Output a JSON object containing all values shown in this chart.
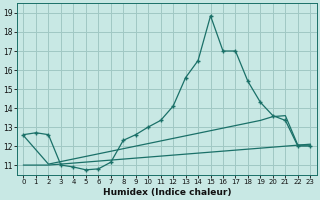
{
  "xlabel": "Humidex (Indice chaleur)",
  "xlim": [
    -0.5,
    23.5
  ],
  "ylim": [
    10.5,
    19.5
  ],
  "xticks": [
    0,
    1,
    2,
    3,
    4,
    5,
    6,
    7,
    8,
    9,
    10,
    11,
    12,
    13,
    14,
    15,
    16,
    17,
    18,
    19,
    20,
    21,
    22,
    23
  ],
  "yticks": [
    11,
    12,
    13,
    14,
    15,
    16,
    17,
    18,
    19
  ],
  "bg_color": "#c8e8e4",
  "grid_color": "#a0c8c4",
  "line_color": "#1a7068",
  "line1_x": [
    0,
    1,
    2,
    3,
    4,
    5,
    6,
    7,
    8,
    9,
    10,
    11,
    12,
    13,
    14,
    15,
    16,
    17,
    18,
    19,
    20,
    21,
    22,
    23
  ],
  "line1_y": [
    12.6,
    12.7,
    12.6,
    11.0,
    10.9,
    10.75,
    10.8,
    11.15,
    12.3,
    12.6,
    13.0,
    13.35,
    14.1,
    15.6,
    16.5,
    18.85,
    17.0,
    17.0,
    15.4,
    14.3,
    13.6,
    13.35,
    12.0,
    12.0
  ],
  "line2_x": [
    0,
    2,
    23
  ],
  "line2_y": [
    11.0,
    11.0,
    12.1
  ],
  "line3_x": [
    0,
    2,
    19,
    20,
    21,
    22,
    23
  ],
  "line3_y": [
    12.55,
    11.05,
    13.35,
    13.55,
    13.6,
    12.05,
    12.05
  ]
}
